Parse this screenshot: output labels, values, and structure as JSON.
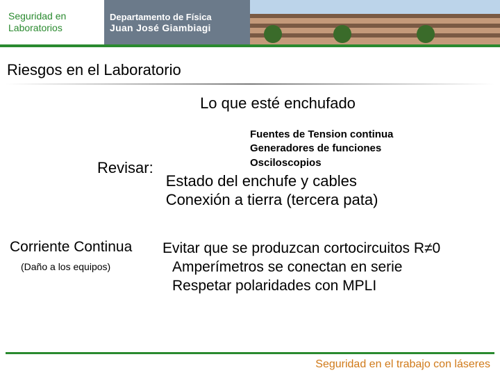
{
  "colors": {
    "green_border": "#2a8a2f",
    "green_text": "#2a8a2f",
    "header_mid_bg": "#6b7a8a",
    "header_right_sky": "#bcd4ea",
    "header_right_building": "#c49a7a",
    "header_right_stripe": "#7a5a44",
    "tree_green": "#3a6b2a",
    "hr_start": "#ffffff",
    "hr_mid": "#7a7a7a",
    "footer_rule": "#2a8a2f",
    "footer_text": "#d07a1a",
    "body_text": "#000000"
  },
  "header": {
    "left_line1": "Seguridad en",
    "left_line2": "Laboratorios",
    "mid_line1": "Departamento de Física",
    "mid_line2": "Juan José Giambiagi"
  },
  "section_title": "Riesgos en el Laboratorio",
  "subtitle": "Lo que esté enchufado",
  "equipment": {
    "line1": "Fuentes de Tension continua",
    "line2": "Generadores de funciones",
    "line3": "Osciloscopios"
  },
  "revisar": {
    "label": "Revisar:",
    "item1": "Estado del enchufe y cables",
    "item2": "Conexión a tierra (tercera pata)"
  },
  "cc": {
    "title": "Corriente Continua",
    "subtitle": "(Daño a los equipos)",
    "line1": "Evitar que se produzcan cortocircuitos  R≠0",
    "line2": "Amperímetros se conectan en serie",
    "line3": "Respetar polaridades con MPLI"
  },
  "footer": "Seguridad en el trabajo con láseres"
}
